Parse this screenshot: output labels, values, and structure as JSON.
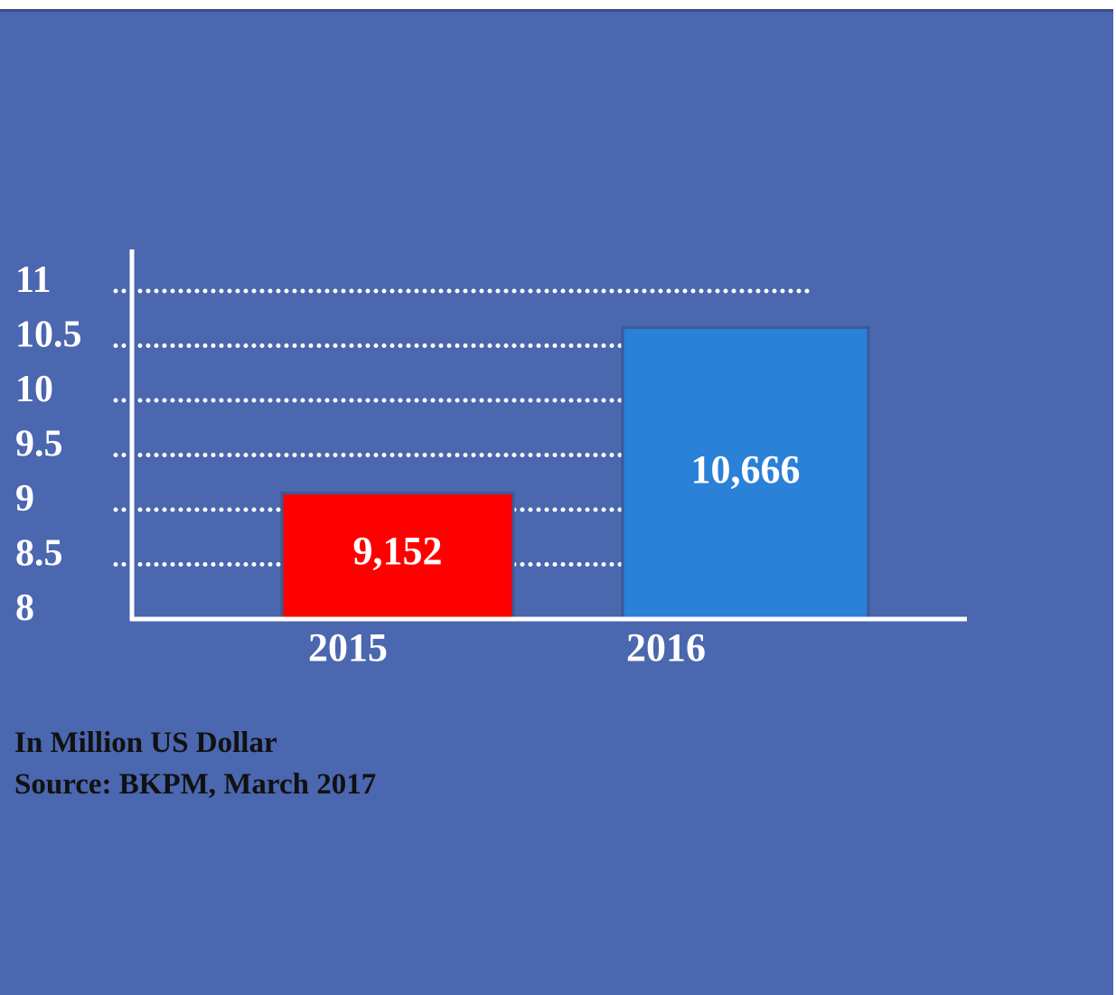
{
  "colors": {
    "background": "#4a67af",
    "text": "#ffffff",
    "gridline": "#ffffff",
    "axis": "#ffffff",
    "bar_border": "#3a5a96",
    "note_text": "#111111"
  },
  "chart_data": {
    "type": "bar",
    "categories": [
      "2015",
      "2016"
    ],
    "values": [
      9.152,
      10.666
    ],
    "data_labels": [
      "9,152",
      "10,666"
    ],
    "bar_colors": [
      "#ff0000",
      "#2b80d8"
    ],
    "y_ticks": [
      "11",
      "10.5",
      "10",
      "9.5",
      "9",
      "8.5",
      "8"
    ],
    "y_tick_values": [
      11,
      10.5,
      10,
      9.5,
      9,
      8.5,
      8
    ],
    "ylim": [
      8,
      11
    ],
    "grid": "dotted",
    "legend": "none",
    "title": "",
    "xlabel": "",
    "ylabel": ""
  },
  "notes": {
    "unit": "In Million US Dollar",
    "source": "Source: BKPM, March 2017"
  }
}
